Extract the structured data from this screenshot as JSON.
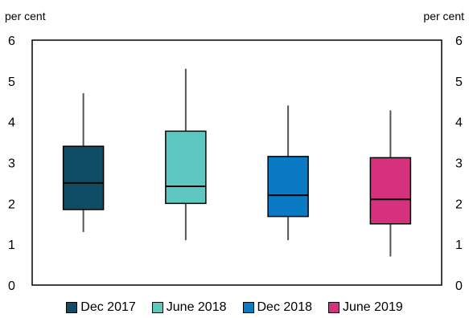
{
  "chart_data": {
    "type": "box",
    "unit_left": "per cent",
    "unit_right": "per cent",
    "ylim": [
      0,
      6
    ],
    "yticks": [
      "0",
      "1",
      "2",
      "3",
      "4",
      "5",
      "6"
    ],
    "grid": false,
    "legend_placement": "bottom",
    "series": [
      {
        "name": "Dec 2017",
        "color": "#0f4c66",
        "whisker_low": 1.3,
        "q1": 1.85,
        "median": 2.5,
        "q3": 3.4,
        "whisker_high": 4.7
      },
      {
        "name": "June 2018",
        "color": "#5ec7c2",
        "whisker_low": 1.1,
        "q1": 2.0,
        "median": 2.42,
        "q3": 3.77,
        "whisker_high": 5.3
      },
      {
        "name": "Dec 2018",
        "color": "#0a7ac4",
        "whisker_low": 1.1,
        "q1": 1.68,
        "median": 2.2,
        "q3": 3.15,
        "whisker_high": 4.4
      },
      {
        "name": "June 2019",
        "color": "#d6317d",
        "whisker_low": 0.7,
        "q1": 1.5,
        "median": 2.1,
        "q3": 3.12,
        "whisker_high": 4.28
      }
    ]
  }
}
